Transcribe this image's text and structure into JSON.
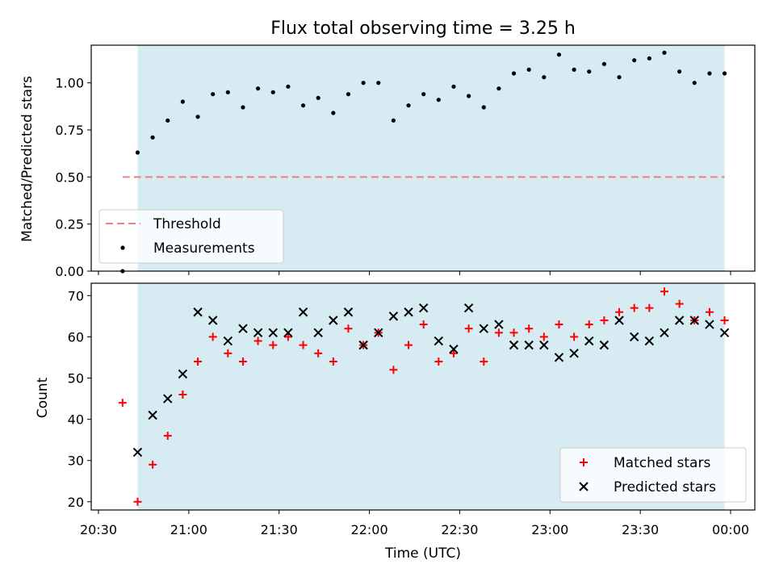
{
  "chart_data": [
    {
      "type": "scatter",
      "title": "Flux total observing time = 3.25 h",
      "xlabel": "",
      "ylabel": "Matched/Predicted stars",
      "xlim": [
        "20:30",
        "00:00"
      ],
      "ylim": [
        0,
        1.2
      ],
      "yticks": [
        0.0,
        0.25,
        0.5,
        0.75,
        1.0
      ],
      "ytick_labels": [
        "0.00",
        "0.25",
        "0.50",
        "0.75",
        "1.00"
      ],
      "shaded_region": {
        "from": "20:43",
        "to": "23:58",
        "color": "#add8e6"
      },
      "threshold": {
        "label": "Threshold",
        "value": 0.5,
        "from": "20:38",
        "to": "23:58",
        "color": "#f08080",
        "style": "dashed"
      },
      "legend": {
        "position": "lower-left",
        "entries": [
          "Threshold",
          "Measurements"
        ]
      },
      "series": [
        {
          "name": "Measurements",
          "marker": "dot",
          "color": "#000000",
          "points": [
            [
              "20:38",
              0.0
            ],
            [
              "20:43",
              0.63
            ],
            [
              "20:48",
              0.71
            ],
            [
              "20:53",
              0.8
            ],
            [
              "20:58",
              0.9
            ],
            [
              "21:03",
              0.82
            ],
            [
              "21:08",
              0.94
            ],
            [
              "21:13",
              0.95
            ],
            [
              "21:18",
              0.87
            ],
            [
              "21:23",
              0.97
            ],
            [
              "21:28",
              0.95
            ],
            [
              "21:33",
              0.98
            ],
            [
              "21:38",
              0.88
            ],
            [
              "21:43",
              0.92
            ],
            [
              "21:48",
              0.84
            ],
            [
              "21:53",
              0.94
            ],
            [
              "21:58",
              1.0
            ],
            [
              "22:03",
              1.0
            ],
            [
              "22:08",
              0.8
            ],
            [
              "22:13",
              0.88
            ],
            [
              "22:18",
              0.94
            ],
            [
              "22:23",
              0.91
            ],
            [
              "22:28",
              0.98
            ],
            [
              "22:33",
              0.93
            ],
            [
              "22:38",
              0.87
            ],
            [
              "22:43",
              0.97
            ],
            [
              "22:48",
              1.05
            ],
            [
              "22:53",
              1.07
            ],
            [
              "22:58",
              1.03
            ],
            [
              "23:03",
              1.15
            ],
            [
              "23:08",
              1.07
            ],
            [
              "23:13",
              1.06
            ],
            [
              "23:18",
              1.1
            ],
            [
              "23:23",
              1.03
            ],
            [
              "23:28",
              1.12
            ],
            [
              "23:33",
              1.13
            ],
            [
              "23:38",
              1.16
            ],
            [
              "23:43",
              1.06
            ],
            [
              "23:48",
              1.0
            ],
            [
              "23:53",
              1.05
            ],
            [
              "23:58",
              1.05
            ]
          ]
        }
      ]
    },
    {
      "type": "scatter",
      "title": "",
      "xlabel": "Time (UTC)",
      "ylabel": "Count",
      "xlim": [
        "20:30",
        "00:00"
      ],
      "ylim": [
        18,
        73
      ],
      "yticks": [
        20,
        30,
        40,
        50,
        60,
        70
      ],
      "ytick_labels": [
        "20",
        "30",
        "40",
        "50",
        "60",
        "70"
      ],
      "xticks": [
        "20:30",
        "21:00",
        "21:30",
        "22:00",
        "22:30",
        "23:00",
        "23:30",
        "00:00"
      ],
      "shaded_region": {
        "from": "20:43",
        "to": "23:58",
        "color": "#add8e6"
      },
      "legend": {
        "position": "lower-right",
        "entries": [
          "Matched stars",
          "Predicted stars"
        ]
      },
      "series": [
        {
          "name": "Matched stars",
          "marker": "plus",
          "color": "#ff0000",
          "points": [
            [
              "20:38",
              44
            ],
            [
              "20:43",
              20
            ],
            [
              "20:48",
              29
            ],
            [
              "20:53",
              36
            ],
            [
              "20:58",
              46
            ],
            [
              "21:03",
              54
            ],
            [
              "21:08",
              60
            ],
            [
              "21:13",
              56
            ],
            [
              "21:18",
              54
            ],
            [
              "21:23",
              59
            ],
            [
              "21:28",
              58
            ],
            [
              "21:33",
              60
            ],
            [
              "21:38",
              58
            ],
            [
              "21:43",
              56
            ],
            [
              "21:48",
              54
            ],
            [
              "21:53",
              62
            ],
            [
              "21:58",
              58
            ],
            [
              "22:03",
              61
            ],
            [
              "22:08",
              52
            ],
            [
              "22:13",
              58
            ],
            [
              "22:18",
              63
            ],
            [
              "22:23",
              54
            ],
            [
              "22:28",
              56
            ],
            [
              "22:33",
              62
            ],
            [
              "22:38",
              54
            ],
            [
              "22:43",
              61
            ],
            [
              "22:48",
              61
            ],
            [
              "22:53",
              62
            ],
            [
              "22:58",
              60
            ],
            [
              "23:03",
              63
            ],
            [
              "23:08",
              60
            ],
            [
              "23:13",
              63
            ],
            [
              "23:18",
              64
            ],
            [
              "23:23",
              66
            ],
            [
              "23:28",
              67
            ],
            [
              "23:33",
              67
            ],
            [
              "23:38",
              71
            ],
            [
              "23:43",
              68
            ],
            [
              "23:48",
              64
            ],
            [
              "23:53",
              66
            ],
            [
              "23:58",
              64
            ]
          ]
        },
        {
          "name": "Predicted stars",
          "marker": "x",
          "color": "#000000",
          "points": [
            [
              "20:43",
              32
            ],
            [
              "20:48",
              41
            ],
            [
              "20:53",
              45
            ],
            [
              "20:58",
              51
            ],
            [
              "21:03",
              66
            ],
            [
              "21:08",
              64
            ],
            [
              "21:13",
              59
            ],
            [
              "21:18",
              62
            ],
            [
              "21:23",
              61
            ],
            [
              "21:28",
              61
            ],
            [
              "21:33",
              61
            ],
            [
              "21:38",
              66
            ],
            [
              "21:43",
              61
            ],
            [
              "21:48",
              64
            ],
            [
              "21:53",
              66
            ],
            [
              "21:58",
              58
            ],
            [
              "22:03",
              61
            ],
            [
              "22:08",
              65
            ],
            [
              "22:13",
              66
            ],
            [
              "22:18",
              67
            ],
            [
              "22:23",
              59
            ],
            [
              "22:28",
              57
            ],
            [
              "22:33",
              67
            ],
            [
              "22:38",
              62
            ],
            [
              "22:43",
              63
            ],
            [
              "22:48",
              58
            ],
            [
              "22:53",
              58
            ],
            [
              "22:58",
              58
            ],
            [
              "23:03",
              55
            ],
            [
              "23:08",
              56
            ],
            [
              "23:13",
              59
            ],
            [
              "23:18",
              58
            ],
            [
              "23:23",
              64
            ],
            [
              "23:28",
              60
            ],
            [
              "23:33",
              59
            ],
            [
              "23:38",
              61
            ],
            [
              "23:43",
              64
            ],
            [
              "23:48",
              64
            ],
            [
              "23:53",
              63
            ],
            [
              "23:58",
              61
            ]
          ]
        }
      ]
    }
  ]
}
